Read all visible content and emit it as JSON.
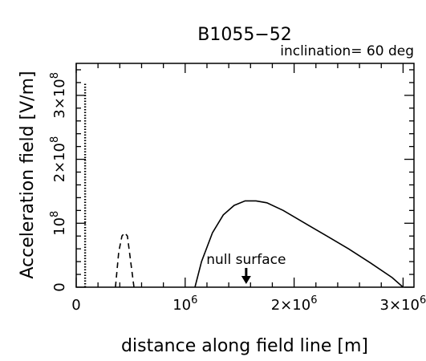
{
  "chart_data": {
    "type": "line",
    "title": "B1055−52",
    "annotation": "inclination= 60 deg",
    "xlabel": "distance along field line [m]",
    "ylabel": "Acceleration field [V/m]",
    "xlim": [
      0,
      3100000
    ],
    "ylim": [
      0,
      350000000
    ],
    "grid": false,
    "legend": "none",
    "x_ticks": [
      {
        "value": 0,
        "base": "0",
        "exp": ""
      },
      {
        "value": 1000000,
        "base": "10",
        "exp": "6"
      },
      {
        "value": 2000000,
        "base": "2×10",
        "exp": "6"
      },
      {
        "value": 3000000,
        "base": "3×10",
        "exp": "6"
      }
    ],
    "y_ticks": [
      {
        "value": 0,
        "base": "0",
        "exp": ""
      },
      {
        "value": 100000000,
        "base": "10",
        "exp": "8"
      },
      {
        "value": 200000000,
        "base": "2×10",
        "exp": "8"
      },
      {
        "value": 300000000,
        "base": "3×10",
        "exp": "8"
      }
    ],
    "series": [
      {
        "style": "dotted",
        "x": [
          82000,
          82000
        ],
        "y": [
          0,
          320000000
        ]
      },
      {
        "style": "dashed",
        "x": [
          360000,
          390000,
          420000,
          445000,
          470000,
          500000,
          530000
        ],
        "y": [
          0,
          55000000,
          80000000,
          85000000,
          80000000,
          40000000,
          0
        ]
      },
      {
        "style": "solid",
        "x": [
          1090000,
          1150000,
          1250000,
          1350000,
          1450000,
          1550000,
          1650000,
          1750000,
          1900000,
          2100000,
          2300000,
          2500000,
          2700000,
          2900000,
          3000000
        ],
        "y": [
          0,
          40000000,
          85000000,
          113000000,
          128000000,
          135000000,
          135000000,
          132000000,
          120000000,
          100000000,
          80000000,
          60000000,
          38000000,
          15000000,
          0
        ]
      }
    ],
    "marker": {
      "label": "null surface",
      "x": 1560000
    }
  }
}
